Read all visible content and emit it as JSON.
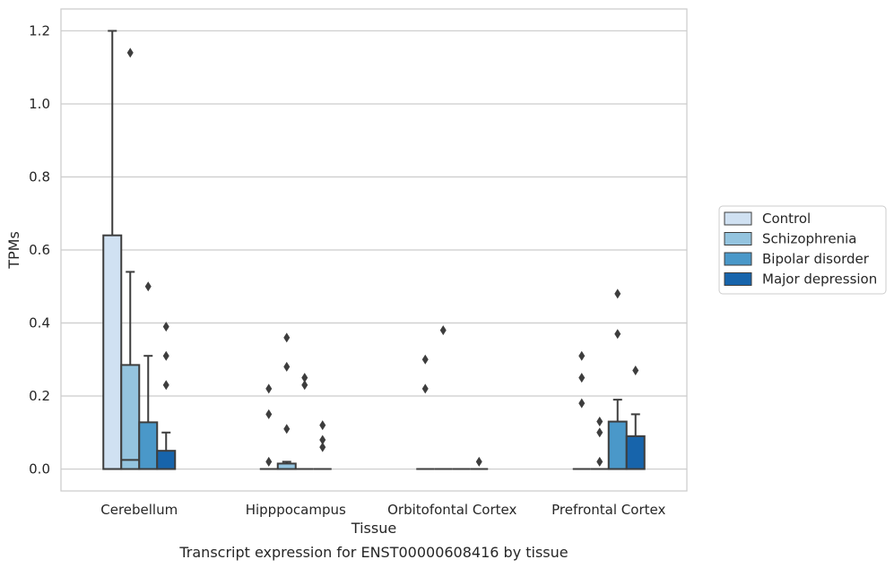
{
  "chart_data": {
    "type": "box",
    "title": "",
    "caption": "Transcript expression for ENST00000608416 by tissue",
    "xlabel": "Tissue",
    "ylabel": "TPMs",
    "ylim": [
      -0.06,
      1.26
    ],
    "yticks": [
      0.0,
      0.2,
      0.4,
      0.6,
      0.8,
      1.0,
      1.2
    ],
    "yticklabels": [
      "0.0",
      "0.2",
      "0.4",
      "0.6",
      "0.8",
      "1.0",
      "1.2"
    ],
    "grid": true,
    "legend_position": "right",
    "categories": [
      "Cerebellum",
      "Hipppocampus",
      "Orbitofontal Cortex",
      "Prefrontal Cortex"
    ],
    "series": [
      {
        "name": "Control",
        "color": "#d0e1f2",
        "boxes": [
          {
            "q1": 0.0,
            "median": 0.0,
            "q3": 0.64,
            "whisker_low": 0.0,
            "whisker_high": 1.2,
            "outliers": []
          },
          {
            "q1": 0.0,
            "median": 0.0,
            "q3": 0.0,
            "whisker_low": 0.0,
            "whisker_high": 0.0,
            "outliers": [
              0.02,
              0.15,
              0.22
            ]
          },
          {
            "q1": 0.0,
            "median": 0.0,
            "q3": 0.0,
            "whisker_low": 0.0,
            "whisker_high": 0.0,
            "outliers": [
              0.22,
              0.3
            ]
          },
          {
            "q1": 0.0,
            "median": 0.0,
            "q3": 0.0,
            "whisker_low": 0.0,
            "whisker_high": 0.0,
            "outliers": [
              0.18,
              0.25,
              0.31
            ]
          }
        ]
      },
      {
        "name": "Schizophrenia",
        "color": "#94c4df",
        "boxes": [
          {
            "q1": 0.0,
            "median": 0.025,
            "q3": 0.285,
            "whisker_low": 0.0,
            "whisker_high": 0.54,
            "outliers": [
              1.14
            ]
          },
          {
            "q1": 0.0,
            "median": 0.0,
            "q3": 0.015,
            "whisker_low": 0.0,
            "whisker_high": 0.02,
            "outliers": [
              0.11,
              0.28,
              0.36
            ]
          },
          {
            "q1": 0.0,
            "median": 0.0,
            "q3": 0.0,
            "whisker_low": 0.0,
            "whisker_high": 0.0,
            "outliers": [
              0.38
            ]
          },
          {
            "q1": 0.0,
            "median": 0.0,
            "q3": 0.0,
            "whisker_low": 0.0,
            "whisker_high": 0.0,
            "outliers": [
              0.02,
              0.1,
              0.13
            ]
          }
        ]
      },
      {
        "name": "Bipolar disorder",
        "color": "#4a98c9",
        "boxes": [
          {
            "q1": 0.0,
            "median": 0.0,
            "q3": 0.128,
            "whisker_low": 0.0,
            "whisker_high": 0.31,
            "outliers": [
              0.5
            ]
          },
          {
            "q1": 0.0,
            "median": 0.0,
            "q3": 0.0,
            "whisker_low": 0.0,
            "whisker_high": 0.0,
            "outliers": [
              0.23,
              0.25
            ]
          },
          {
            "q1": 0.0,
            "median": 0.0,
            "q3": 0.0,
            "whisker_low": 0.0,
            "whisker_high": 0.0,
            "outliers": []
          },
          {
            "q1": 0.0,
            "median": 0.0,
            "q3": 0.13,
            "whisker_low": 0.0,
            "whisker_high": 0.19,
            "outliers": [
              0.37,
              0.48
            ]
          }
        ]
      },
      {
        "name": "Major depression",
        "color": "#1764ab",
        "boxes": [
          {
            "q1": 0.0,
            "median": 0.0,
            "q3": 0.05,
            "whisker_low": 0.0,
            "whisker_high": 0.1,
            "outliers": [
              0.23,
              0.31,
              0.39
            ]
          },
          {
            "q1": 0.0,
            "median": 0.0,
            "q3": 0.0,
            "whisker_low": 0.0,
            "whisker_high": 0.0,
            "outliers": [
              0.06,
              0.08,
              0.12
            ]
          },
          {
            "q1": 0.0,
            "median": 0.0,
            "q3": 0.0,
            "whisker_low": 0.0,
            "whisker_high": 0.0,
            "outliers": [
              0.02
            ]
          },
          {
            "q1": 0.0,
            "median": 0.0,
            "q3": 0.09,
            "whisker_low": 0.0,
            "whisker_high": 0.15,
            "outliers": [
              0.27
            ]
          }
        ]
      }
    ]
  }
}
